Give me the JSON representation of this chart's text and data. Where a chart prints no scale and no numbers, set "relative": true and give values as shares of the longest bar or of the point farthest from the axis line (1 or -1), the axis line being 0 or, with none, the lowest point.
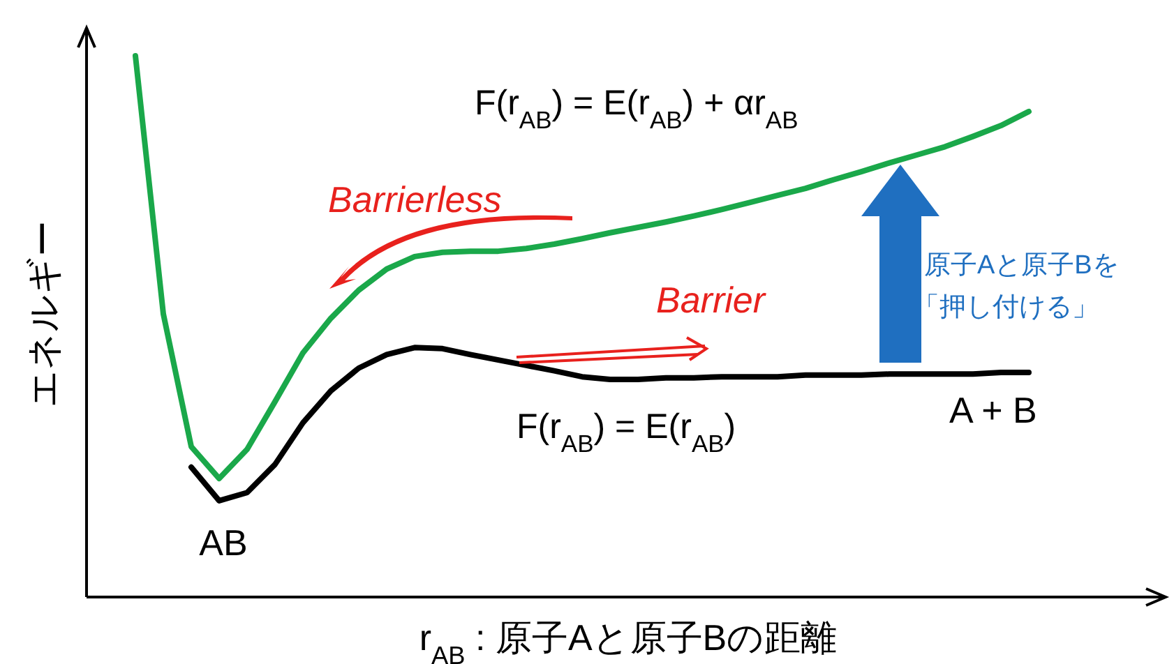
{
  "chart_data": {
    "type": "line",
    "relative": true,
    "xlabel": "r$_{AB}$ : 原子Aと原子Bの距離",
    "ylabel": "エネルギー",
    "categories": [
      null,
      null,
      null,
      null,
      null,
      null,
      null,
      null,
      null,
      null,
      null,
      null,
      null,
      null,
      null,
      null,
      null,
      null,
      null,
      null,
      null,
      null,
      null,
      null,
      null,
      null,
      null,
      null,
      null,
      null,
      null,
      null,
      null
    ],
    "series": [
      {
        "name": "F(r$_{AB}$) = E(r$_{AB}$) + αr$_{AB}$",
        "color": "#1aa84a",
        "values": [
          1.0,
          0.523,
          0.278,
          0.219,
          0.273,
          0.361,
          0.451,
          0.515,
          0.567,
          0.606,
          0.629,
          0.637,
          0.639,
          0.639,
          0.644,
          0.652,
          0.662,
          0.673,
          0.683,
          0.693,
          0.704,
          0.716,
          0.729,
          0.742,
          0.755,
          0.771,
          0.786,
          0.802,
          0.817,
          0.832,
          0.851,
          0.871,
          0.897
        ]
      },
      {
        "name": "F(r$_{AB}$) = E(r$_{AB}$)",
        "color": "#000000",
        "values": [
          null,
          null,
          0.24,
          0.178,
          0.193,
          0.245,
          0.322,
          0.381,
          0.423,
          0.448,
          0.461,
          0.459,
          0.448,
          0.438,
          0.428,
          0.418,
          0.407,
          0.402,
          0.402,
          0.405,
          0.405,
          0.407,
          0.407,
          0.407,
          0.41,
          0.41,
          0.41,
          0.412,
          0.412,
          0.412,
          0.412,
          0.415,
          0.415
        ]
      }
    ],
    "annotations": [
      "Barrierless",
      "Barrier",
      "AB",
      "A + B",
      "原子Aと原子Bを「押し付ける」"
    ]
  }
}
